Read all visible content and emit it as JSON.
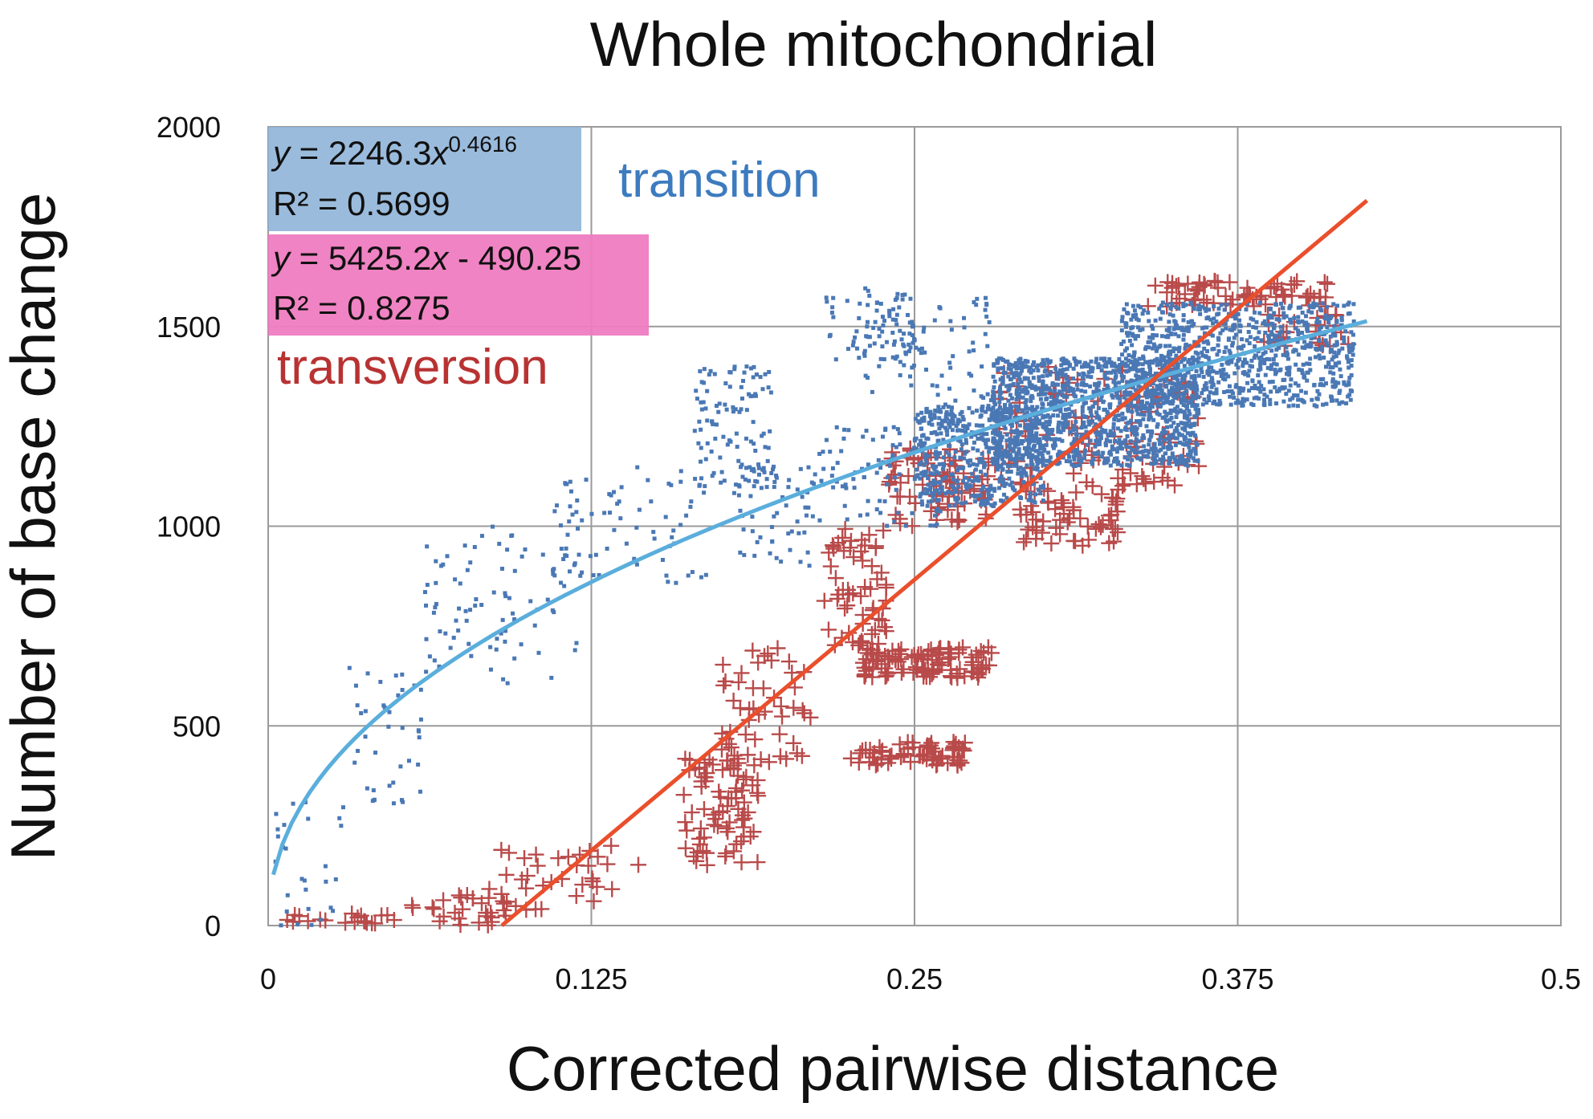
{
  "chart_data": {
    "type": "scatter",
    "title": "Whole mitochondrial",
    "xlabel": "Corrected pairwise distance",
    "ylabel": "Number of base change",
    "xlim": [
      0,
      0.5
    ],
    "ylim": [
      0,
      2000
    ],
    "x_ticks": [
      {
        "value": 0,
        "label": "0"
      },
      {
        "value": 0.125,
        "label": "0.125"
      },
      {
        "value": 0.25,
        "label": "0.25"
      },
      {
        "value": 0.375,
        "label": "0.375"
      },
      {
        "value": 0.5,
        "label": "0.5"
      }
    ],
    "y_ticks": [
      {
        "value": 0,
        "label": "0"
      },
      {
        "value": 500,
        "label": "500"
      },
      {
        "value": 1000,
        "label": "1000"
      },
      {
        "value": 1500,
        "label": "1500"
      },
      {
        "value": 2000,
        "label": "2000"
      }
    ],
    "grid": true,
    "series": [
      {
        "name": "transition",
        "color": "#4a78b5",
        "marker": "dot",
        "trendline": {
          "type": "power",
          "a": 2246.3,
          "b": 0.4616,
          "r2": 0.5699,
          "color": "#5aaedc",
          "label_y_prefix": "y",
          "label_y_rest": " = 2246.3",
          "label_x": "x",
          "label_exp": "0.4616",
          "label_r2": "R² = 0.5699"
        },
        "clusters": [
          {
            "x": [
              0.002,
              0.03
            ],
            "y": [
              0,
              320
            ],
            "n": 28
          },
          {
            "x": [
              0.03,
              0.06
            ],
            "y": [
              300,
              650
            ],
            "n": 40
          },
          {
            "x": [
              0.06,
              0.12
            ],
            "y": [
              600,
              1000
            ],
            "n": 90
          },
          {
            "x": [
              0.11,
              0.17
            ],
            "y": [
              850,
              1150
            ],
            "n": 70
          },
          {
            "x": [
              0.165,
              0.195
            ],
            "y": [
              1100,
              1400
            ],
            "n": 110
          },
          {
            "x": [
              0.18,
              0.21
            ],
            "y": [
              900,
              1150
            ],
            "n": 60
          },
          {
            "x": [
              0.215,
              0.25
            ],
            "y": [
              1400,
              1600
            ],
            "n": 70
          },
          {
            "x": [
              0.23,
              0.28
            ],
            "y": [
              1300,
              1580
            ],
            "n": 80
          },
          {
            "x": [
              0.21,
              0.26
            ],
            "y": [
              1000,
              1250
            ],
            "n": 90
          },
          {
            "x": [
              0.25,
              0.3
            ],
            "y": [
              1050,
              1300
            ],
            "n": 500
          },
          {
            "x": [
              0.28,
              0.36
            ],
            "y": [
              1150,
              1420
            ],
            "n": 1300
          },
          {
            "x": [
              0.33,
              0.42
            ],
            "y": [
              1300,
              1560
            ],
            "n": 900
          }
        ]
      },
      {
        "name": "transversion",
        "color": "#b94a4a",
        "marker": "plus",
        "trendline": {
          "type": "linear",
          "a": 5425.2,
          "b": -490.25,
          "r2": 0.8275,
          "color": "#ea4f2c",
          "label_eq": "y = 5425.2x - 490.25",
          "label_y_prefix": "y",
          "label_y_rest": " = 5425.2",
          "label_x": "x",
          "label_tail": " - 490.25",
          "label_r2": "R² = 0.8275"
        },
        "clusters": [
          {
            "x": [
              0.002,
              0.05
            ],
            "y": [
              0,
              30
            ],
            "n": 20
          },
          {
            "x": [
              0.055,
              0.1
            ],
            "y": [
              0,
              80
            ],
            "n": 30
          },
          {
            "x": [
              0.085,
              0.145
            ],
            "y": [
              40,
              200
            ],
            "n": 35
          },
          {
            "x": [
              0.16,
              0.19
            ],
            "y": [
              150,
              420
            ],
            "n": 80
          },
          {
            "x": [
              0.175,
              0.21
            ],
            "y": [
              400,
              700
            ],
            "n": 50
          },
          {
            "x": [
              0.215,
              0.24
            ],
            "y": [
              700,
              1000
            ],
            "n": 60
          },
          {
            "x": [
              0.225,
              0.27
            ],
            "y": [
              400,
              460
            ],
            "n": 70
          },
          {
            "x": [
              0.23,
              0.28
            ],
            "y": [
              620,
              700
            ],
            "n": 110
          },
          {
            "x": [
              0.24,
              0.28
            ],
            "y": [
              1000,
              1200
            ],
            "n": 80
          },
          {
            "x": [
              0.29,
              0.33
            ],
            "y": [
              950,
              1100
            ],
            "n": 60
          },
          {
            "x": [
              0.28,
              0.36
            ],
            "y": [
              1100,
              1400
            ],
            "n": 120
          },
          {
            "x": [
              0.34,
              0.41
            ],
            "y": [
              1550,
              1620
            ],
            "n": 70
          },
          {
            "x": [
              0.38,
              0.42
            ],
            "y": [
              1450,
              1530
            ],
            "n": 25
          }
        ]
      }
    ]
  }
}
